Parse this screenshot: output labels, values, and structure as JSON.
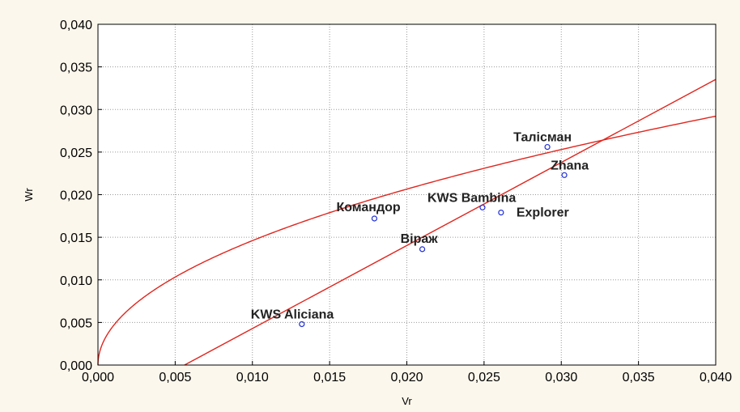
{
  "chart_data": {
    "type": "scatter",
    "title": "",
    "xlabel": "Vr",
    "ylabel": "Wr",
    "xlim": [
      0,
      0.04
    ],
    "ylim": [
      0,
      0.04
    ],
    "x_ticks": [
      "0,000",
      "0,005",
      "0,010",
      "0,015",
      "0,020",
      "0,025",
      "0,030",
      "0,035",
      "0,040"
    ],
    "y_ticks": [
      "0,000",
      "0,005",
      "0,010",
      "0,015",
      "0,020",
      "0,025",
      "0,030",
      "0,035",
      "0,040"
    ],
    "grid": true,
    "colors": {
      "points": "#1f2fd6",
      "curves": "#e0261e",
      "background": "#fcf7ec",
      "plot_area": "#ffffff"
    },
    "points": [
      {
        "label": "Талісман",
        "x": 0.0291,
        "y": 0.0256
      },
      {
        "label": "Zhana",
        "x": 0.0302,
        "y": 0.0223
      },
      {
        "label": "KWS Bambina",
        "x": 0.0249,
        "y": 0.0185
      },
      {
        "label": "Explorer",
        "x": 0.0261,
        "y": 0.0179
      },
      {
        "label": "Командор",
        "x": 0.0179,
        "y": 0.0172
      },
      {
        "label": "Віраж",
        "x": 0.021,
        "y": 0.0136
      },
      {
        "label": "KWS Aliciana",
        "x": 0.0132,
        "y": 0.0048
      }
    ],
    "regression_line": {
      "slope": 0.9746,
      "intercept": -0.00546
    },
    "limiting_parabola": {
      "formula": "Wr = sqrt(Vr * VoLo)",
      "VoLo": 0.02133
    }
  }
}
